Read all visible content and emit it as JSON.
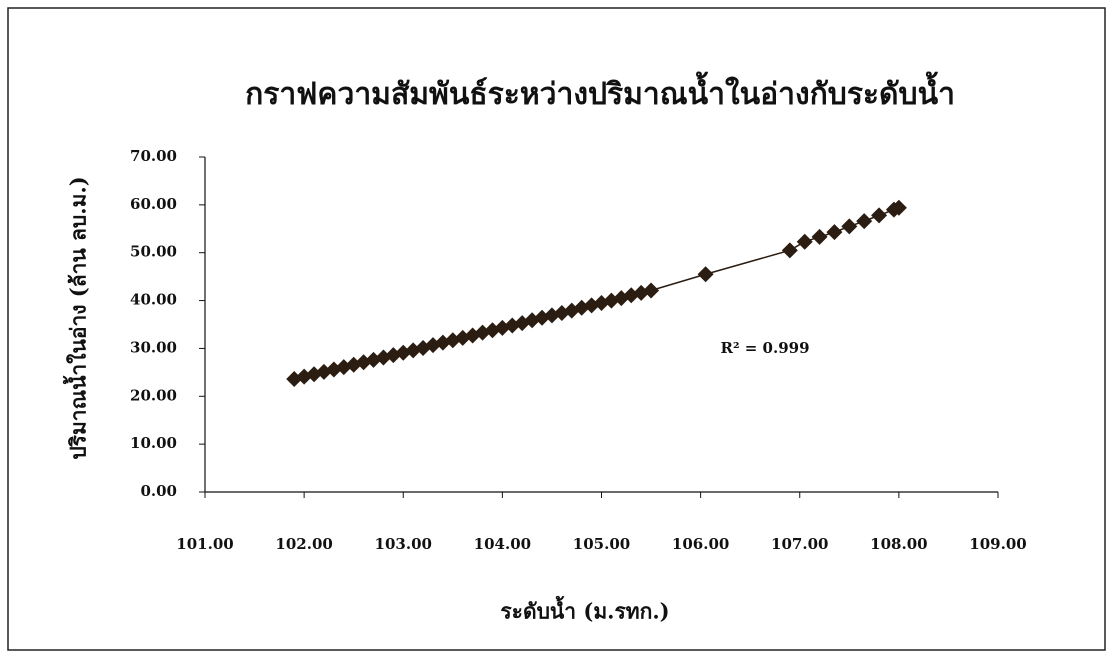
{
  "chart_data": {
    "type": "scatter",
    "title": "กราฟความสัมพันธ์ระหว่างปริมาณน้ำในอ่างกับระดับน้ำ",
    "x_label": "ระดับน้ำ (ม.รทก.)",
    "y_label": "ปริมาณน้ำในอ่าง (ล้าน ลบ.ม.)",
    "annotation": "R² = 0.999",
    "color": "#2b1d12",
    "x": [
      101.9,
      102.0,
      102.1,
      102.2,
      102.3,
      102.4,
      102.5,
      102.6,
      102.7,
      102.8,
      102.9,
      103.0,
      103.1,
      103.2,
      103.3,
      103.4,
      103.5,
      103.6,
      103.7,
      103.8,
      103.9,
      104.0,
      104.1,
      104.2,
      104.3,
      104.4,
      104.5,
      104.6,
      104.7,
      104.8,
      104.9,
      105.0,
      105.1,
      105.2,
      105.3,
      105.4,
      105.5,
      106.05,
      106.9,
      107.05,
      107.2,
      107.35,
      107.5,
      107.65,
      107.8,
      107.95,
      108.0
    ],
    "values": [
      23.6,
      24.1,
      24.6,
      25.1,
      25.6,
      26.1,
      26.6,
      27.1,
      27.6,
      28.1,
      28.6,
      29.1,
      29.6,
      30.1,
      30.7,
      31.2,
      31.7,
      32.2,
      32.7,
      33.3,
      33.8,
      34.3,
      34.8,
      35.3,
      35.9,
      36.4,
      36.9,
      37.4,
      37.9,
      38.5,
      39.0,
      39.5,
      40.0,
      40.5,
      41.1,
      41.6,
      42.1,
      45.5,
      50.5,
      52.3,
      53.3,
      54.3,
      55.5,
      56.6,
      57.8,
      59.0,
      59.4
    ],
    "xlim": [
      101,
      109
    ],
    "ylim": [
      0,
      70
    ],
    "xticks": [
      {
        "value": 101,
        "label": "101.00"
      },
      {
        "value": 102,
        "label": "102.00"
      },
      {
        "value": 103,
        "label": "103.00"
      },
      {
        "value": 104,
        "label": "104.00"
      },
      {
        "value": 105,
        "label": "105.00"
      },
      {
        "value": 106,
        "label": "106.00"
      },
      {
        "value": 107,
        "label": "107.00"
      },
      {
        "value": 108,
        "label": "108.00"
      },
      {
        "value": 109,
        "label": "109.00"
      }
    ],
    "yticks": [
      {
        "value": 0,
        "label": "0.00"
      },
      {
        "value": 10,
        "label": "10.00"
      },
      {
        "value": 20,
        "label": "20.00"
      },
      {
        "value": 30,
        "label": "30.00"
      },
      {
        "value": 40,
        "label": "40.00"
      },
      {
        "value": 50,
        "label": "50.00"
      },
      {
        "value": 60,
        "label": "60.00"
      },
      {
        "value": 70,
        "label": "70.00"
      }
    ]
  }
}
